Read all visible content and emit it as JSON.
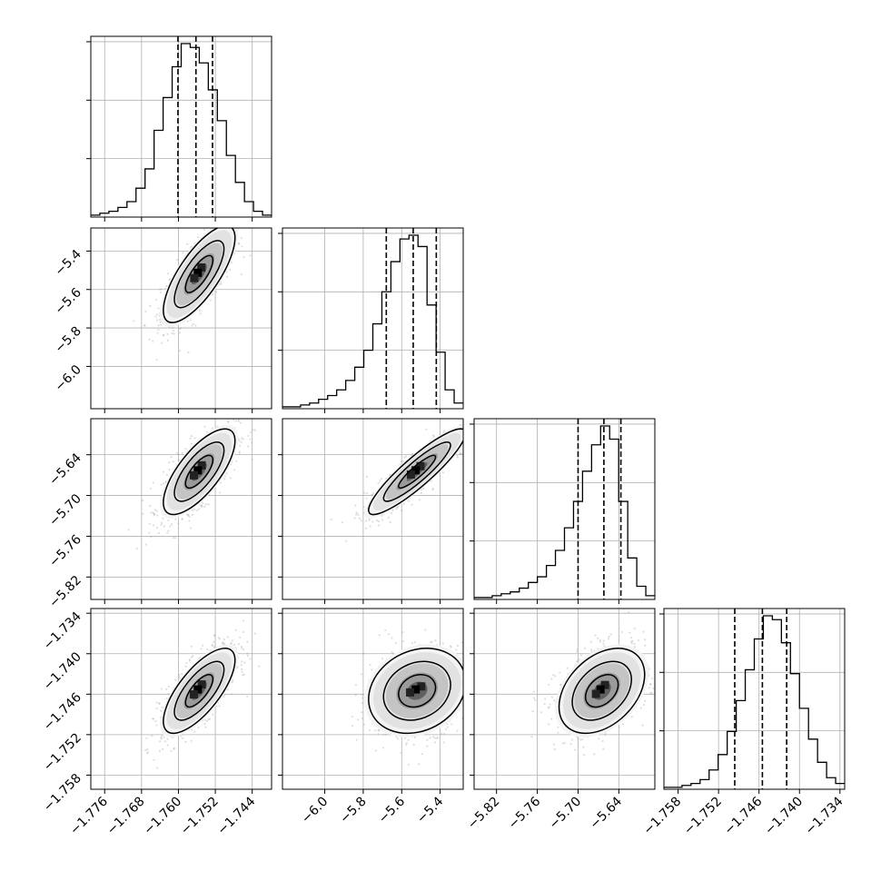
{
  "chart_data": {
    "type": "corner",
    "parameters": [
      {
        "range": [
          -1.779,
          -1.7398
        ],
        "ticks": [
          -1.776,
          -1.768,
          -1.76,
          -1.752,
          -1.744
        ],
        "tick_labels": [
          "−1.776",
          "−1.768",
          "−1.760",
          "−1.752",
          "−1.744"
        ]
      },
      {
        "range": [
          -6.22,
          -5.28
        ],
        "ticks": [
          -6.0,
          -5.8,
          -5.6,
          -5.4
        ],
        "tick_labels": [
          "−6.0",
          "−5.8",
          "−5.6",
          "−5.4"
        ]
      },
      {
        "range": [
          -5.853,
          -5.587
        ],
        "ticks": [
          -5.82,
          -5.76,
          -5.7,
          -5.64
        ],
        "tick_labels": [
          "−5.82",
          "−5.76",
          "−5.70",
          "−5.64"
        ]
      },
      {
        "range": [
          -1.7601,
          -1.7333
        ],
        "ticks": [
          -1.758,
          -1.752,
          -1.746,
          -1.74,
          -1.734
        ],
        "tick_labels": [
          "−1.758",
          "−1.752",
          "−1.746",
          "−1.740",
          "−1.734"
        ]
      }
    ],
    "diagonal_histograms": [
      {
        "counts": [
          1,
          2,
          3,
          5,
          8,
          15,
          25,
          45,
          62,
          78,
          90,
          88,
          80,
          66,
          50,
          32,
          18,
          8,
          3,
          1
        ],
        "quantiles": [
          -1.7601,
          -1.7562,
          -1.7526
        ]
      },
      {
        "counts": [
          1,
          1,
          2,
          3,
          5,
          7,
          10,
          15,
          22,
          31,
          45,
          62,
          78,
          90,
          92,
          86,
          55,
          30,
          10,
          3
        ],
        "quantiles": [
          -5.68,
          -5.54,
          -5.42
        ]
      },
      {
        "counts": [
          1,
          1,
          2,
          3,
          4,
          6,
          9,
          12,
          18,
          26,
          38,
          52,
          68,
          82,
          92,
          85,
          52,
          22,
          7,
          2
        ],
        "quantiles": [
          -5.7,
          -5.662,
          -5.637
        ]
      },
      {
        "counts": [
          1,
          1,
          2,
          3,
          5,
          10,
          18,
          30,
          46,
          62,
          78,
          90,
          88,
          76,
          60,
          42,
          26,
          14,
          6,
          3
        ],
        "quantiles": [
          -1.7496,
          -1.7455,
          -1.7419
        ]
      }
    ],
    "pairs": [
      {
        "x_param": 0,
        "y_param": 1,
        "mean": [
          -1.7555,
          -5.52
        ],
        "sd": [
          0.0037,
          0.12
        ],
        "corr": 0.75
      },
      {
        "x_param": 0,
        "y_param": 2,
        "mean": [
          -1.7555,
          -5.665
        ],
        "sd": [
          0.0037,
          0.03
        ],
        "corr": 0.72
      },
      {
        "x_param": 1,
        "y_param": 2,
        "mean": [
          -5.52,
          -5.665
        ],
        "sd": [
          0.12,
          0.03
        ],
        "corr": 0.9
      },
      {
        "x_param": 0,
        "y_param": 3,
        "mean": [
          -1.7555,
          -1.7455
        ],
        "sd": [
          0.0037,
          0.003
        ],
        "corr": 0.72
      },
      {
        "x_param": 1,
        "y_param": 3,
        "mean": [
          -5.52,
          -1.7455
        ],
        "sd": [
          0.12,
          0.003
        ],
        "corr": 0.2
      },
      {
        "x_param": 2,
        "y_param": 3,
        "mean": [
          -5.665,
          -1.7455
        ],
        "sd": [
          0.03,
          0.003
        ],
        "corr": 0.38
      }
    ],
    "grid": true,
    "contour_levels": [
      0.5,
      1.0,
      1.5
    ],
    "colors": {
      "line": "#000000",
      "grid": "#b0b0b0",
      "scatter": "#a0a0a0"
    }
  }
}
